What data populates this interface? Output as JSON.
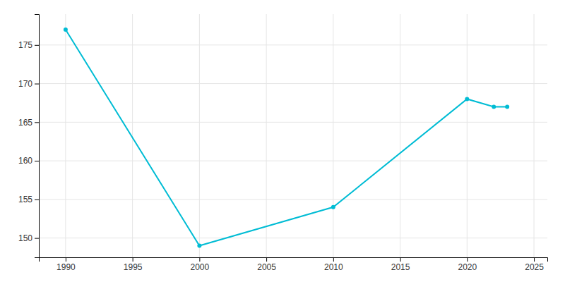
{
  "chart_data": {
    "type": "line",
    "x": [
      1990,
      2000,
      2010,
      2020,
      2022,
      2023
    ],
    "values": [
      177,
      149,
      154,
      168,
      167,
      167
    ],
    "color": "#00BCD4",
    "marker": "circle",
    "xlim": [
      1988,
      2026
    ],
    "ylim": [
      147.5,
      179
    ],
    "xticks": [
      1990,
      1995,
      2000,
      2005,
      2010,
      2015,
      2020,
      2025
    ],
    "yticks": [
      150,
      155,
      160,
      165,
      170,
      175
    ],
    "grid": true
  }
}
